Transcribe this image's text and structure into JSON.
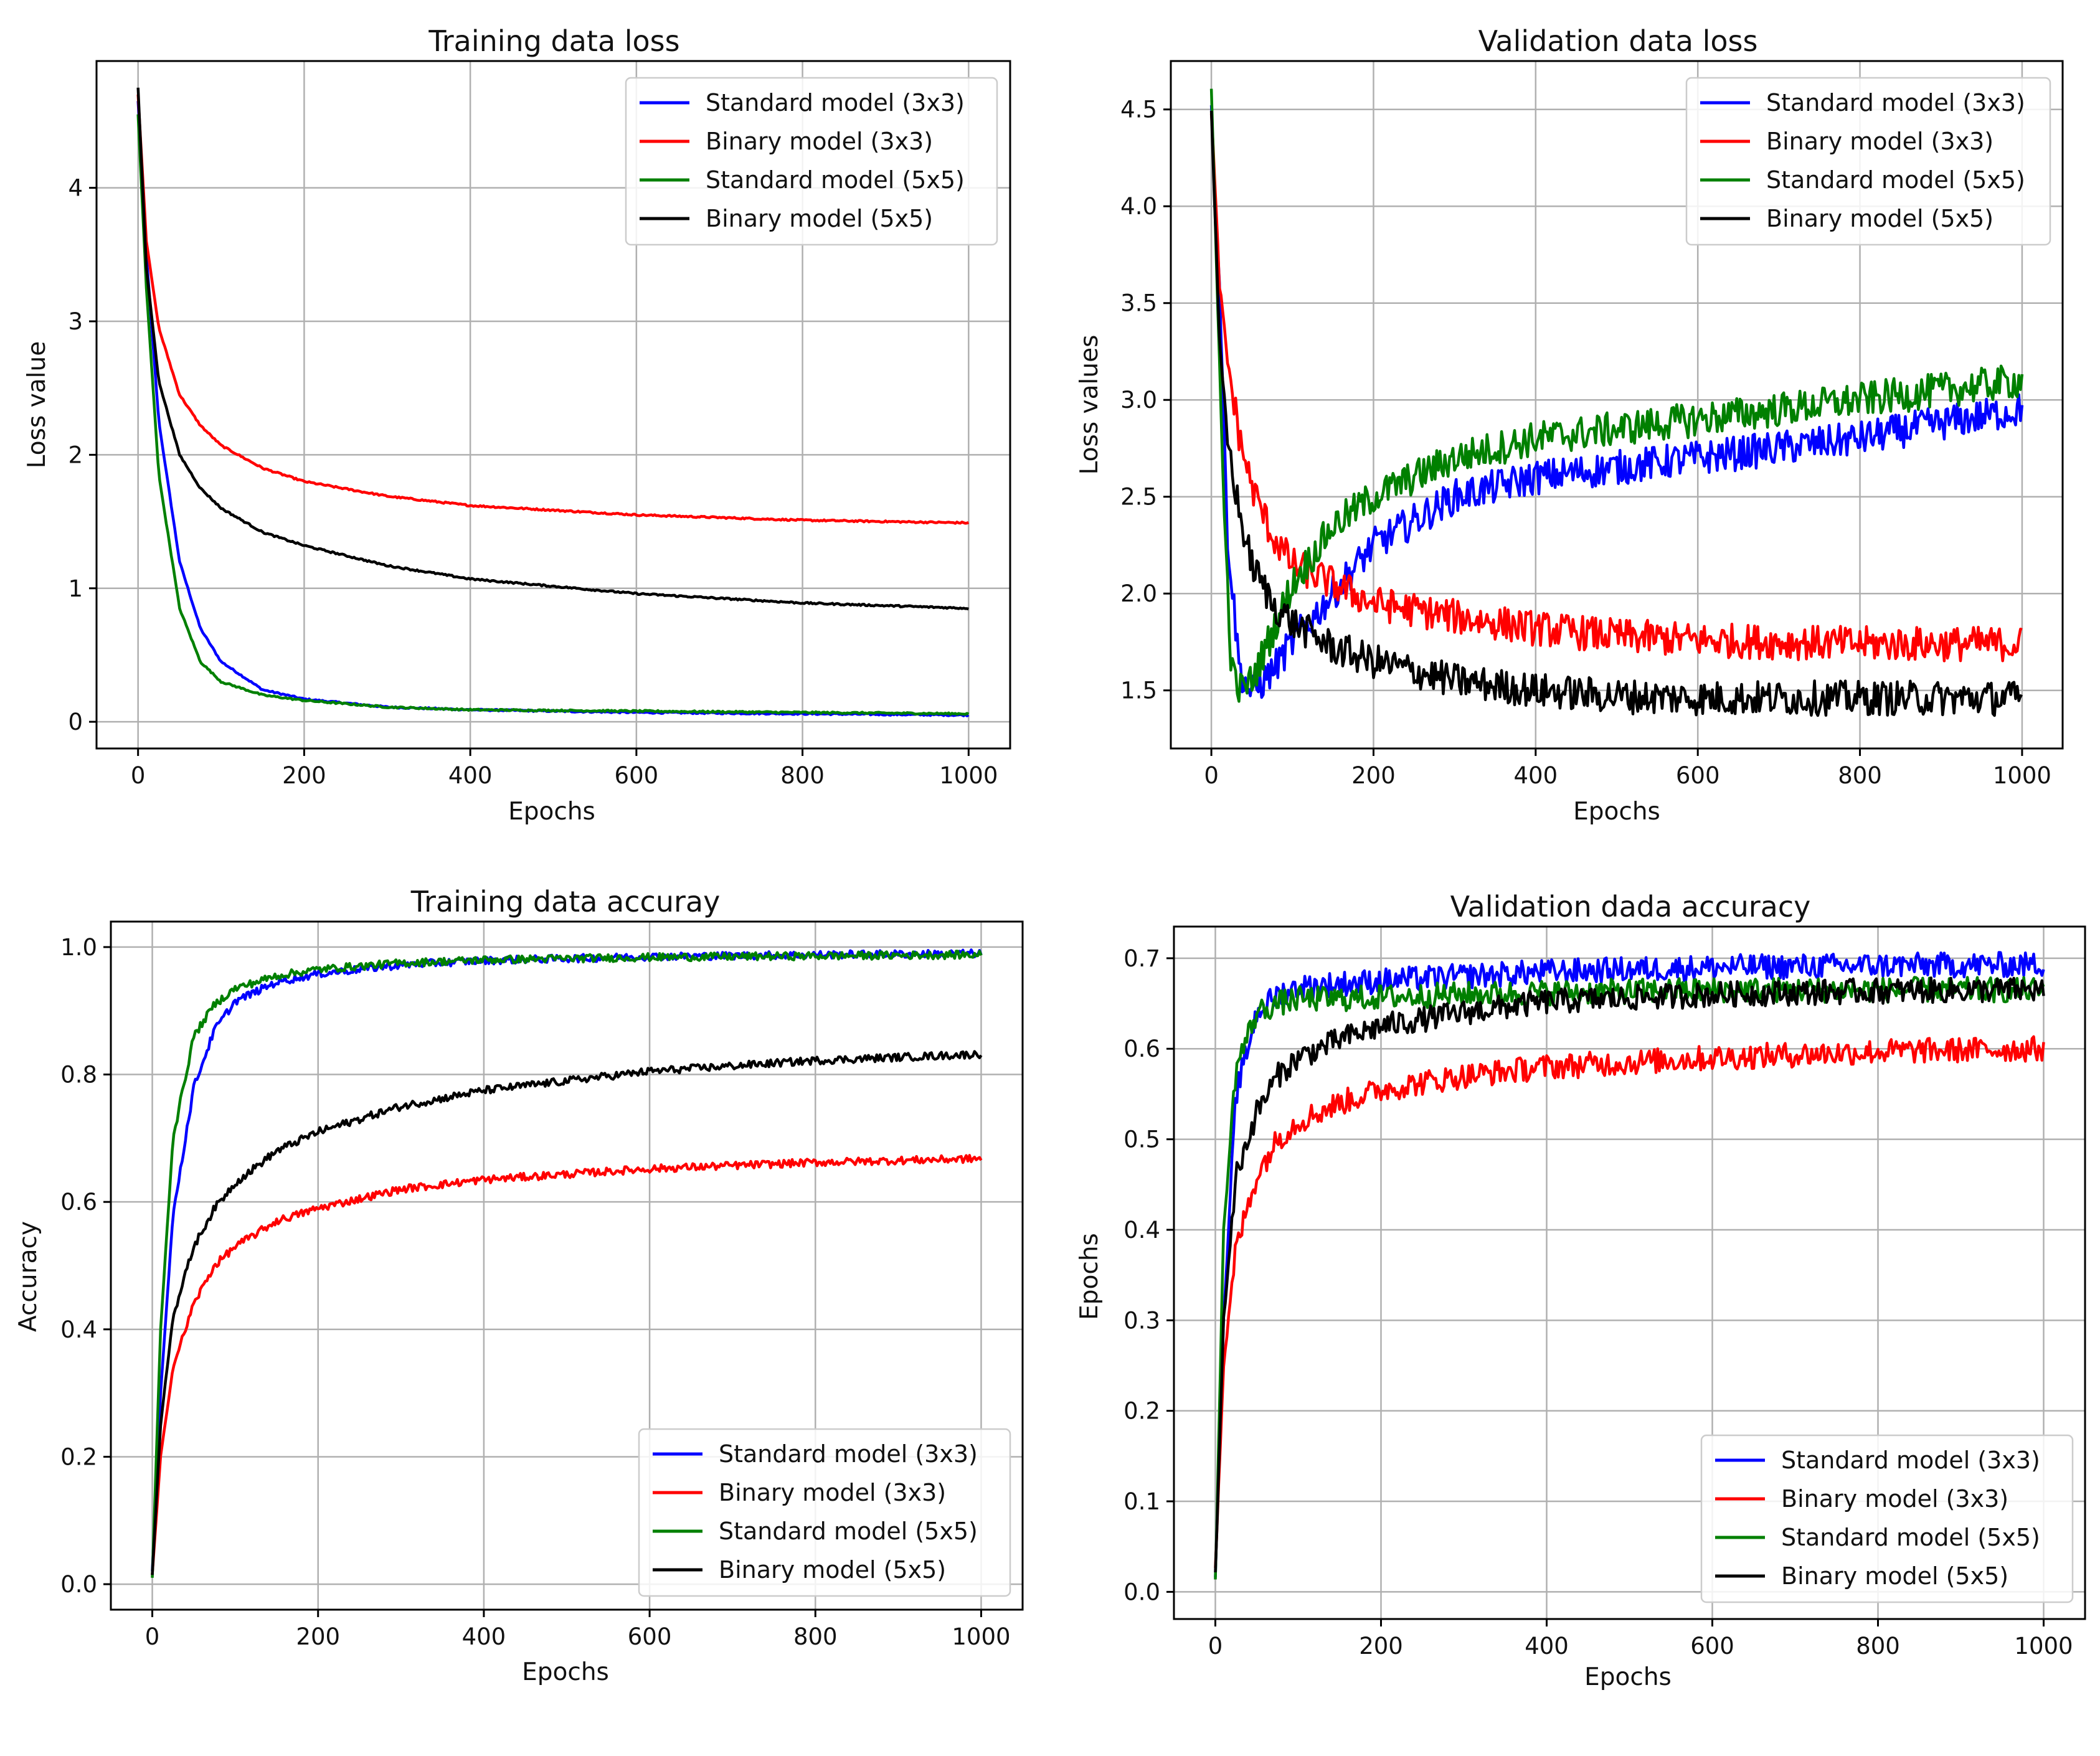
{
  "figure": {
    "colors": {
      "Standard model (3x3)": "#0000ff",
      "Binary model (3x3)": "#ff0000",
      "Standard model (5x5)": "#008000",
      "Binary model (5x5)": "#000000",
      "grid": "#b0b0b0"
    }
  },
  "chart_data": [
    {
      "type": "line",
      "title": "Training data loss",
      "xlabel": "Epochs",
      "ylabel": "Loss value",
      "xlim": [
        -50,
        1050
      ],
      "ylim": [
        -0.2,
        4.95
      ],
      "xticks": [
        0,
        200,
        400,
        600,
        800,
        1000
      ],
      "yticks": [
        0,
        1,
        2,
        3,
        4
      ],
      "grid": true,
      "legend_position": "top-right",
      "series": [
        {
          "name": "Standard model (3x3)",
          "x": [
            0,
            10,
            25,
            50,
            75,
            100,
            150,
            200,
            300,
            400,
            600,
            800,
            1000
          ],
          "values": [
            4.65,
            3.5,
            2.25,
            1.2,
            0.7,
            0.45,
            0.24,
            0.17,
            0.11,
            0.09,
            0.07,
            0.06,
            0.05
          ]
        },
        {
          "name": "Binary model (3x3)",
          "x": [
            0,
            10,
            25,
            50,
            75,
            100,
            150,
            200,
            300,
            400,
            600,
            800,
            1000
          ],
          "values": [
            4.7,
            3.6,
            2.95,
            2.45,
            2.22,
            2.07,
            1.9,
            1.8,
            1.69,
            1.62,
            1.55,
            1.51,
            1.49
          ]
        },
        {
          "name": "Standard model (5x5)",
          "x": [
            0,
            10,
            25,
            50,
            75,
            100,
            150,
            200,
            300,
            400,
            600,
            800,
            1000
          ],
          "values": [
            4.55,
            3.25,
            1.85,
            0.85,
            0.45,
            0.3,
            0.2,
            0.16,
            0.11,
            0.09,
            0.08,
            0.07,
            0.06
          ]
        },
        {
          "name": "Binary model (5x5)",
          "x": [
            0,
            10,
            25,
            50,
            75,
            100,
            150,
            200,
            300,
            400,
            600,
            800,
            1000
          ],
          "values": [
            4.75,
            3.4,
            2.55,
            2.0,
            1.75,
            1.6,
            1.42,
            1.32,
            1.17,
            1.07,
            0.96,
            0.89,
            0.85
          ]
        }
      ]
    },
    {
      "type": "line",
      "title": "Validation data loss",
      "xlabel": "Epochs",
      "ylabel": "Loss values",
      "xlim": [
        -50,
        1050
      ],
      "ylim": [
        1.2,
        4.75
      ],
      "xticks": [
        0,
        200,
        400,
        600,
        800,
        1000
      ],
      "yticks": [
        1.5,
        2.0,
        2.5,
        3.0,
        3.5,
        4.0,
        4.5
      ],
      "grid": true,
      "legend_position": "top-right",
      "series": [
        {
          "name": "Standard model (3x3)",
          "x": [
            0,
            10,
            20,
            35,
            50,
            75,
            100,
            150,
            200,
            300,
            400,
            500,
            600,
            700,
            800,
            900,
            1000
          ],
          "values": [
            4.5,
            3.6,
            2.3,
            1.6,
            1.48,
            1.6,
            1.75,
            2.0,
            2.25,
            2.5,
            2.6,
            2.65,
            2.7,
            2.75,
            2.8,
            2.88,
            2.95
          ]
        },
        {
          "name": "Binary model (3x3)",
          "x": [
            0,
            10,
            20,
            35,
            50,
            75,
            100,
            150,
            200,
            300,
            400,
            500,
            600,
            700,
            800,
            900,
            1000
          ],
          "values": [
            4.5,
            3.6,
            3.2,
            2.8,
            2.55,
            2.3,
            2.15,
            2.05,
            1.95,
            1.88,
            1.82,
            1.78,
            1.76,
            1.75,
            1.74,
            1.74,
            1.74
          ]
        },
        {
          "name": "Standard model (5x5)",
          "x": [
            0,
            5,
            15,
            25,
            35,
            50,
            75,
            100,
            150,
            200,
            300,
            400,
            500,
            600,
            700,
            800,
            900,
            1000
          ],
          "values": [
            4.6,
            3.9,
            2.5,
            1.6,
            1.5,
            1.55,
            1.8,
            2.05,
            2.35,
            2.5,
            2.7,
            2.8,
            2.85,
            2.9,
            2.95,
            3.0,
            3.05,
            3.1
          ]
        },
        {
          "name": "Binary model (5x5)",
          "x": [
            0,
            10,
            20,
            35,
            50,
            75,
            100,
            150,
            200,
            300,
            400,
            500,
            600,
            700,
            800,
            900,
            1000
          ],
          "values": [
            4.5,
            3.3,
            2.8,
            2.4,
            2.15,
            1.95,
            1.85,
            1.72,
            1.65,
            1.55,
            1.5,
            1.47,
            1.46,
            1.46,
            1.46,
            1.46,
            1.46
          ]
        }
      ]
    },
    {
      "type": "line",
      "title": "Training data accuray",
      "xlabel": "Epochs",
      "ylabel": "Accuracy",
      "xlim": [
        -50,
        1050
      ],
      "ylim": [
        -0.04,
        1.04
      ],
      "xticks": [
        0,
        200,
        400,
        600,
        800,
        1000
      ],
      "yticks": [
        0.0,
        0.2,
        0.4,
        0.6,
        0.8,
        1.0
      ],
      "grid": true,
      "legend_position": "bottom-right",
      "series": [
        {
          "name": "Standard model (3x3)",
          "x": [
            0,
            10,
            25,
            50,
            75,
            100,
            150,
            200,
            300,
            400,
            600,
            800,
            1000
          ],
          "values": [
            0.02,
            0.3,
            0.58,
            0.78,
            0.87,
            0.915,
            0.945,
            0.958,
            0.972,
            0.979,
            0.985,
            0.988,
            0.99
          ]
        },
        {
          "name": "Binary model (3x3)",
          "x": [
            0,
            10,
            25,
            50,
            75,
            100,
            150,
            200,
            300,
            400,
            600,
            800,
            1000
          ],
          "values": [
            0.015,
            0.2,
            0.34,
            0.44,
            0.5,
            0.53,
            0.57,
            0.59,
            0.62,
            0.635,
            0.652,
            0.662,
            0.668
          ]
        },
        {
          "name": "Standard model (5x5)",
          "x": [
            0,
            10,
            25,
            50,
            75,
            100,
            150,
            200,
            300,
            400,
            600,
            800,
            1000
          ],
          "values": [
            0.01,
            0.4,
            0.7,
            0.86,
            0.91,
            0.935,
            0.955,
            0.965,
            0.975,
            0.98,
            0.984,
            0.986,
            0.988
          ]
        },
        {
          "name": "Binary model (5x5)",
          "x": [
            0,
            10,
            25,
            50,
            75,
            100,
            150,
            200,
            300,
            400,
            600,
            800,
            1000
          ],
          "values": [
            0.015,
            0.25,
            0.42,
            0.53,
            0.59,
            0.63,
            0.68,
            0.71,
            0.75,
            0.775,
            0.805,
            0.822,
            0.832
          ]
        }
      ]
    },
    {
      "type": "line",
      "title": "Validation dada accuracy",
      "xlabel": "Epochs",
      "ylabel": "Epochs",
      "xlim": [
        -50,
        1050
      ],
      "ylim": [
        -0.03,
        0.735
      ],
      "xticks": [
        0,
        200,
        400,
        600,
        800,
        1000
      ],
      "yticks": [
        0.0,
        0.1,
        0.2,
        0.3,
        0.4,
        0.5,
        0.6,
        0.7
      ],
      "grid": true,
      "legend_position": "bottom-right",
      "series": [
        {
          "name": "Standard model (3x3)",
          "x": [
            0,
            10,
            25,
            50,
            75,
            100,
            150,
            200,
            300,
            400,
            600,
            800,
            1000
          ],
          "values": [
            0.02,
            0.3,
            0.55,
            0.64,
            0.66,
            0.668,
            0.672,
            0.675,
            0.68,
            0.685,
            0.69,
            0.692,
            0.693
          ]
        },
        {
          "name": "Binary model (3x3)",
          "x": [
            0,
            10,
            25,
            50,
            75,
            100,
            150,
            200,
            300,
            400,
            600,
            800,
            1000
          ],
          "values": [
            0.03,
            0.25,
            0.38,
            0.46,
            0.5,
            0.52,
            0.54,
            0.555,
            0.57,
            0.58,
            0.59,
            0.597,
            0.6
          ]
        },
        {
          "name": "Standard model (5x5)",
          "x": [
            0,
            10,
            25,
            50,
            75,
            100,
            150,
            200,
            300,
            400,
            600,
            800,
            1000
          ],
          "values": [
            0.01,
            0.4,
            0.58,
            0.64,
            0.65,
            0.655,
            0.655,
            0.657,
            0.66,
            0.662,
            0.665,
            0.665,
            0.665
          ]
        },
        {
          "name": "Binary model (5x5)",
          "x": [
            0,
            10,
            25,
            50,
            75,
            100,
            150,
            200,
            300,
            400,
            600,
            800,
            1000
          ],
          "values": [
            0.02,
            0.3,
            0.46,
            0.53,
            0.57,
            0.59,
            0.61,
            0.625,
            0.64,
            0.652,
            0.66,
            0.664,
            0.665
          ]
        }
      ]
    }
  ]
}
